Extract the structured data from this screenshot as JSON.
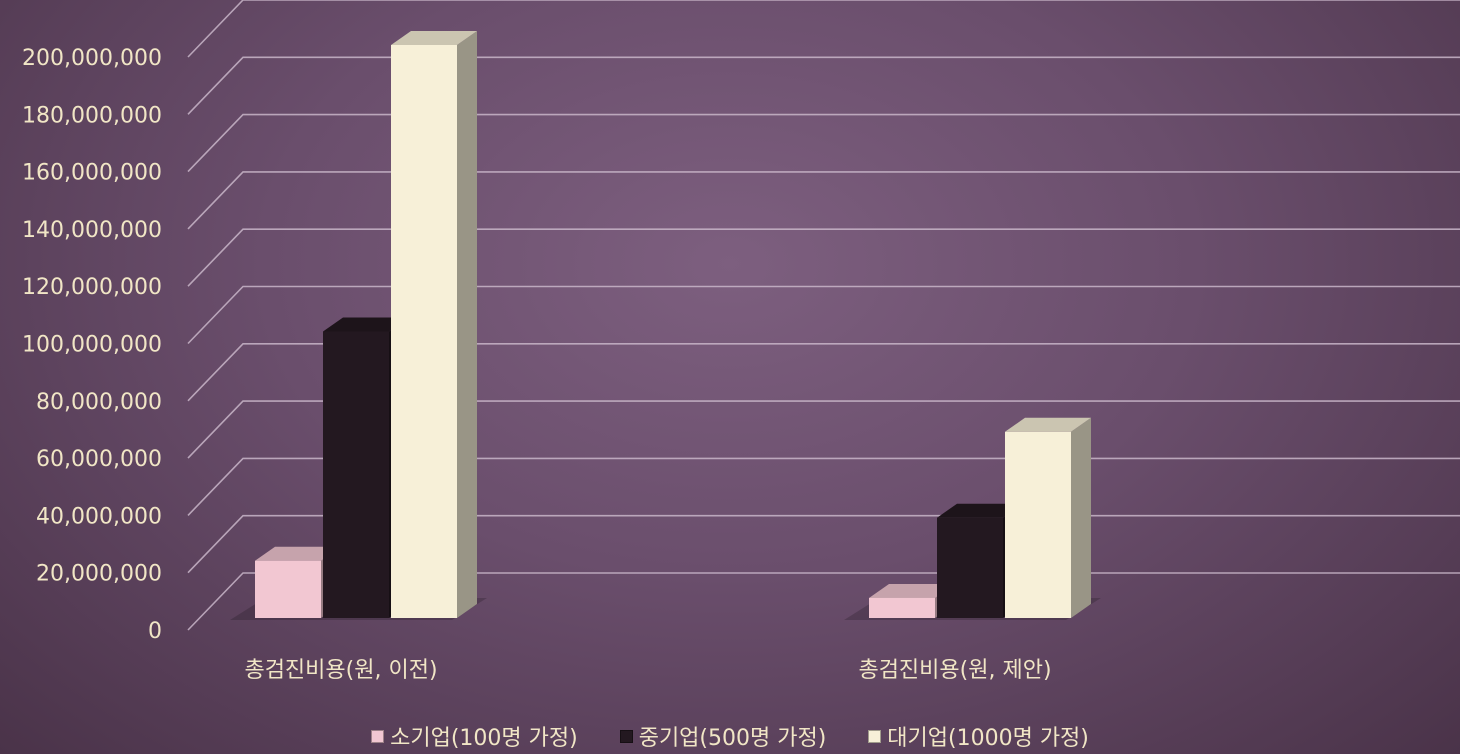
{
  "chart_data": {
    "type": "bar",
    "categories": [
      "총검진비용(원, 이전)",
      "총검진비용(원, 제안)"
    ],
    "series": [
      {
        "name": "소기업(100명 가정)",
        "values": [
          20000000,
          7000000
        ],
        "color": "#f2c7d2"
      },
      {
        "name": "중기업(500명 가정)",
        "values": [
          100000000,
          35000000
        ],
        "color": "#231820"
      },
      {
        "name": "대기업(1000명 가정)",
        "values": [
          200000000,
          65000000
        ],
        "color": "#f7f0d8"
      }
    ],
    "ylim": [
      0,
      200000000
    ],
    "yticks": [
      "0",
      "20,000,000",
      "40,000,000",
      "60,000,000",
      "80,000,000",
      "100,000,000",
      "120,000,000",
      "140,000,000",
      "160,000,000",
      "180,000,000",
      "200,000,000"
    ],
    "title": "",
    "xlabel": "",
    "ylabel": "",
    "grid": true,
    "legend_position": "bottom",
    "style": "3d-clustered-column"
  }
}
